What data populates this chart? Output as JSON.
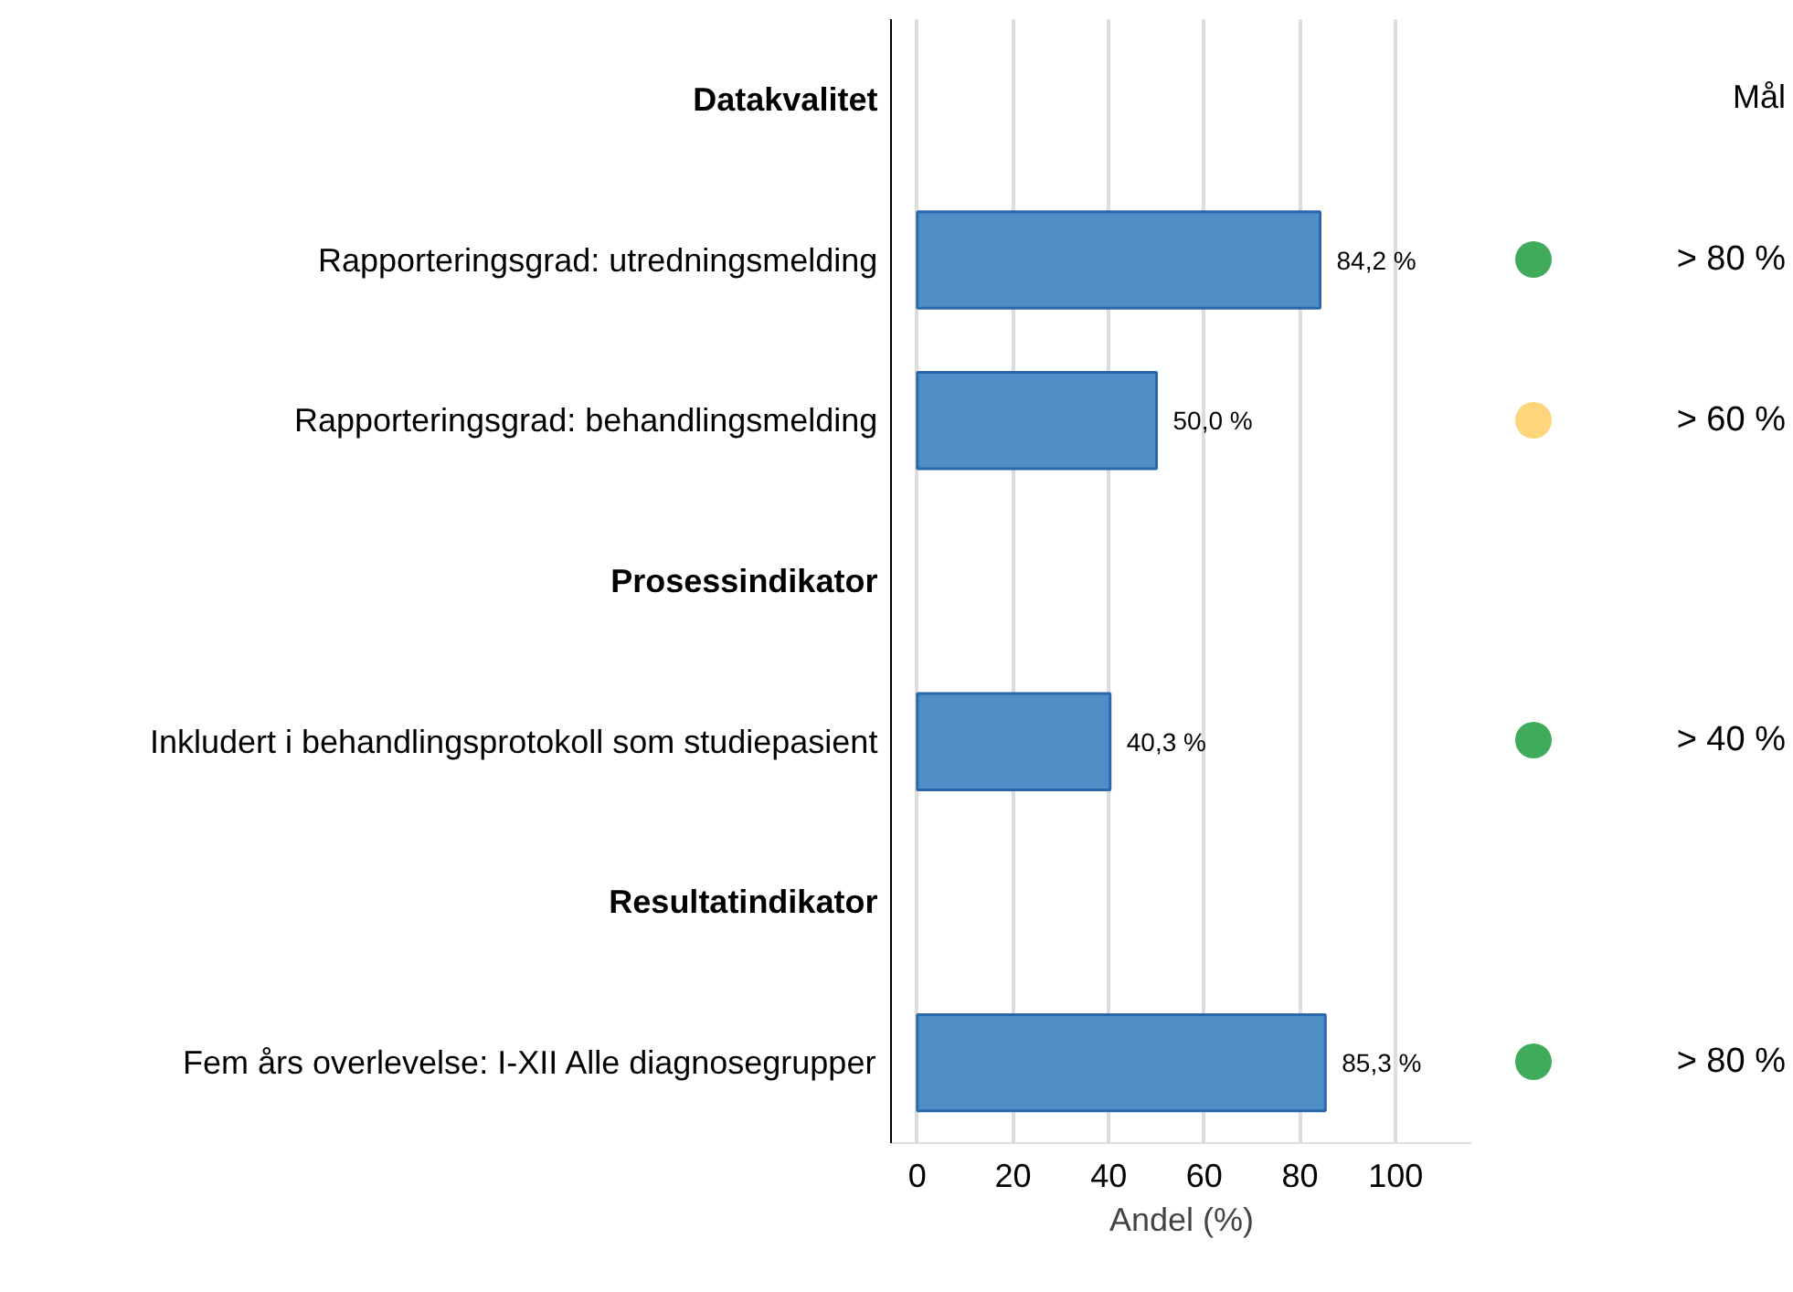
{
  "chart_data": {
    "type": "bar",
    "orientation": "horizontal",
    "categories": [
      "Datakvalitet",
      "Rapporteringsgrad: utredningsmelding",
      "Rapporteringsgrad: behandlingsmelding",
      "Prosessindikator",
      "Inkludert i behandlingsprotokoll som studiepasient",
      "Resultatindikator",
      "Fem års overlevelse: I-XII Alle diagnosegrupper"
    ],
    "series": [
      {
        "color": "#4f8fc6",
        "values": [
          null,
          84.2,
          50.0,
          null,
          40.3,
          null,
          85.3
        ]
      }
    ],
    "value_labels": [
      null,
      "84,2 %",
      "50,0 %",
      null,
      "40,3 %",
      null,
      "85,3 %"
    ],
    "xlim": [
      -5.5,
      116
    ],
    "xticks": [
      0,
      20,
      40,
      60,
      80,
      100
    ],
    "xlabel": "Andel (%)",
    "grid": "x",
    "annotations": [
      "Mål",
      "> 80 %",
      "> 60 %",
      "> 40 %",
      "> 80 %"
    ]
  }
}
